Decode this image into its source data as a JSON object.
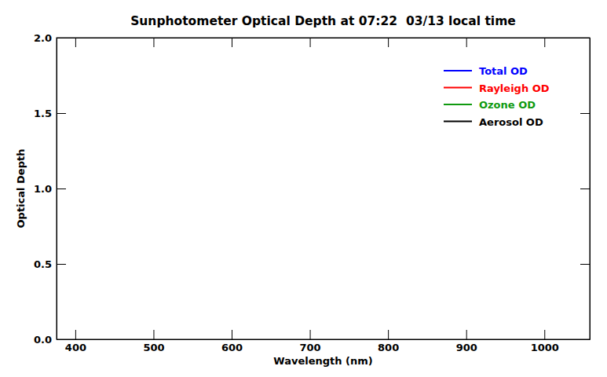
{
  "chart_data": {
    "type": "line",
    "title": "Sunphotometer Optical Depth at 07:22  03/13 local time",
    "x_label": "Wavelength (nm)",
    "y_label": "Optical Depth",
    "x": [],
    "series": [
      {
        "name": "Total OD",
        "color": "#0000ff",
        "values": []
      },
      {
        "name": "Rayleigh OD",
        "color": "#ff0000",
        "values": []
      },
      {
        "name": "Ozone OD",
        "color": "#109a10",
        "values": []
      },
      {
        "name": "Aerosol OD",
        "color": "#000000",
        "values": []
      }
    ],
    "xlim": [
      376,
      1058
    ],
    "xticks": [
      400,
      500,
      600,
      700,
      800,
      900,
      1000
    ],
    "ylim": [
      0,
      2
    ],
    "yticks": [
      {
        "value": 0,
        "label": "0.0"
      },
      {
        "value": 0.5,
        "label": "0.5"
      },
      {
        "value": 1,
        "label": "1.0"
      },
      {
        "value": 1.5,
        "label": "1.5"
      },
      {
        "value": 2,
        "label": "2.0"
      }
    ],
    "legend": "upper right"
  }
}
